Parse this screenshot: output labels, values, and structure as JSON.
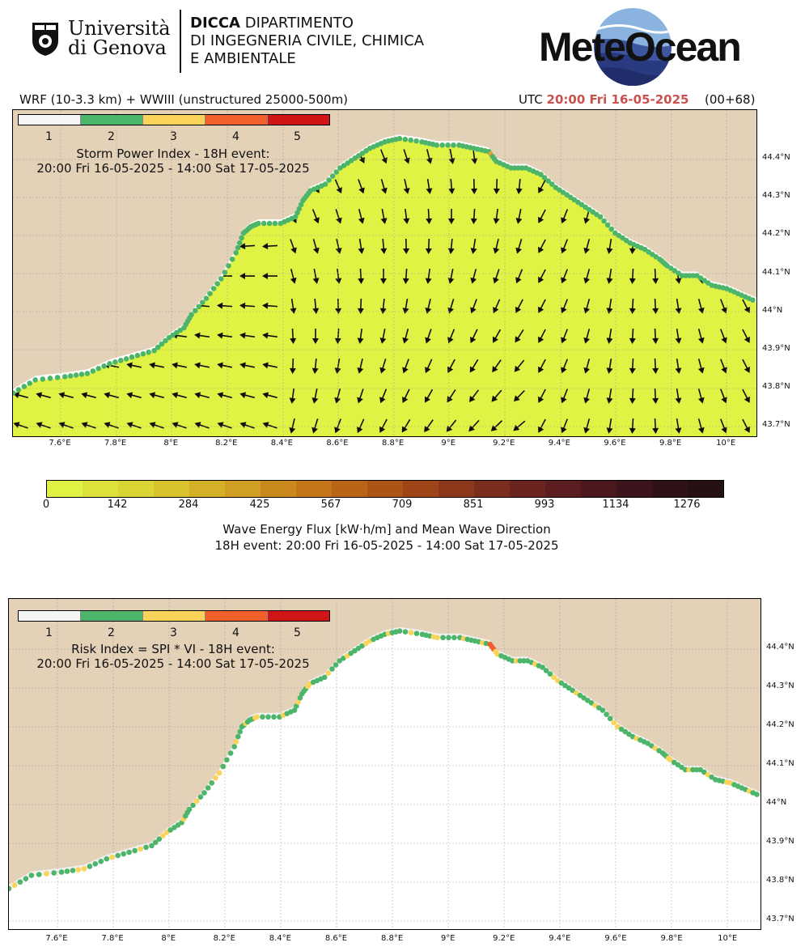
{
  "header": {
    "unige_line1": "Università",
    "unige_line2": "di Genova",
    "dicca_bold": "DICCA",
    "dicca_line1": "DIPARTIMENTO",
    "dicca_line2": "DI INGEGNERIA CIVILE, CHIMICA",
    "dicca_line3": "E AMBIENTALE",
    "meteocean": "MeteOcean"
  },
  "model_info": "WRF (10-3.3 km) + WWIII (unstructured 25000-500m)",
  "utc_label": "UTC",
  "utc_time": "20:00 Fri 16-05-2025",
  "forecast_step": "(00+68)",
  "lon_ticks": [
    "7.6°E",
    "7.8°E",
    "8°E",
    "8.2°E",
    "8.4°E",
    "8.6°E",
    "8.8°E",
    "9°E",
    "9.2°E",
    "9.4°E",
    "9.6°E",
    "9.8°E",
    "10°E"
  ],
  "lat_ticks": [
    "44.4°N",
    "44.3°N",
    "44.2°N",
    "44.1°N",
    "44°N",
    "43.9°N",
    "43.8°N",
    "43.7°N"
  ],
  "index_classes": [
    {
      "label": "1",
      "color": "#f5f5f5"
    },
    {
      "label": "2",
      "color": "#4db56a"
    },
    {
      "label": "3",
      "color": "#f9d35a"
    },
    {
      "label": "4",
      "color": "#f0602c"
    },
    {
      "label": "5",
      "color": "#cf1515"
    }
  ],
  "colors": {
    "land": "#e3d1b8",
    "sea_flux": "#e0f244",
    "sea_white": "#ffffff",
    "arrow": "#0f0f0f",
    "utc_accent": "#c9524f"
  },
  "panel1": {
    "title_line1": "Storm Power Index - 18H event:",
    "title_line2": "20:00 Fri 16-05-2025 - 14:00 Sat 17-05-2025"
  },
  "flux_colorbar": {
    "ticks": [
      "0",
      "142",
      "284",
      "425",
      "567",
      "709",
      "851",
      "993",
      "1134",
      "1276"
    ],
    "label_line1": "Wave Energy Flux [kW·h/m] and Mean Wave Direction",
    "label_line2": "18H event: 20:00 Fri 16-05-2025 - 14:00 Sat 17-05-2025",
    "colors": [
      "#e0f244",
      "#dde23b",
      "#dbd435",
      "#d8c22e",
      "#d4b027",
      "#cf9e22",
      "#c9891c",
      "#c27618",
      "#b96516",
      "#ac5416",
      "#9e4518",
      "#8e381b",
      "#7d2d1e",
      "#6c2420",
      "#5b1d20",
      "#4b181e",
      "#3c141b",
      "#2f1117",
      "#251014"
    ]
  },
  "panel2": {
    "title_line1": "Risk Index = SPI * VI - 18H event:",
    "title_line2": "20:00 Fri 16-05-2025 - 14:00 Sat 17-05-2025"
  }
}
